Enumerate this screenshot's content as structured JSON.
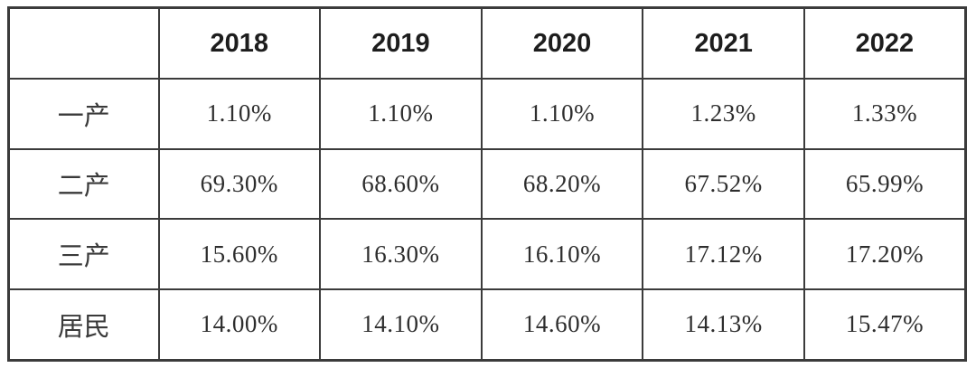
{
  "colors": {
    "background": "#ffffff",
    "border": "#3b3b3b",
    "header_text": "#1d1d1d",
    "value_text": "#2e2e2e"
  },
  "chart_data": {
    "type": "table",
    "title": "",
    "columns": [
      "",
      "2018",
      "2019",
      "2020",
      "2021",
      "2022"
    ],
    "rows": [
      {
        "label": "一产",
        "values": [
          "1.10%",
          "1.10%",
          "1.10%",
          "1.23%",
          "1.33%"
        ]
      },
      {
        "label": "二产",
        "values": [
          "69.30%",
          "68.60%",
          "68.20%",
          "67.52%",
          "65.99%"
        ]
      },
      {
        "label": "三产",
        "values": [
          "15.60%",
          "16.30%",
          "16.10%",
          "17.12%",
          "17.20%"
        ]
      },
      {
        "label": "居民",
        "values": [
          "14.00%",
          "14.10%",
          "14.60%",
          "14.13%",
          "15.47%"
        ]
      }
    ]
  }
}
